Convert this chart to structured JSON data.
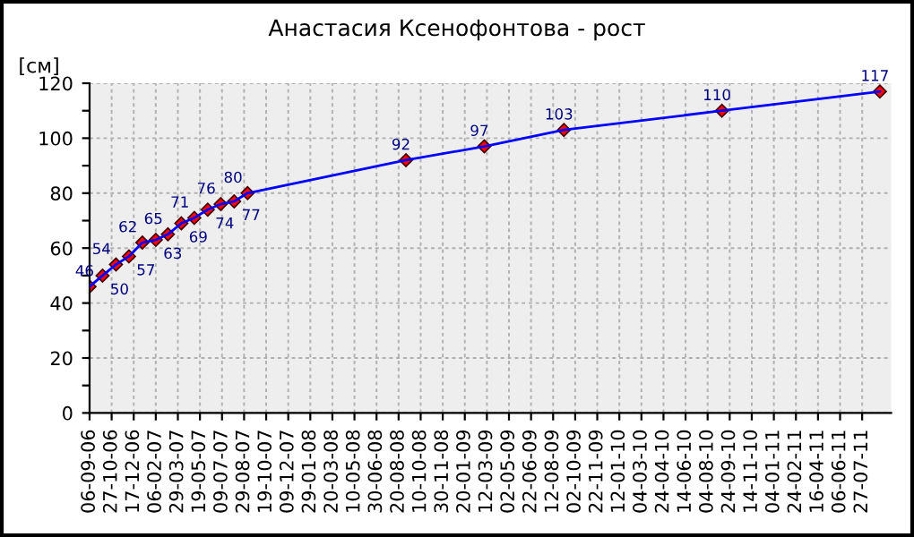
{
  "chart_data": {
    "type": "line",
    "title": "Анастасия Ксенофонтова - рост",
    "ylabel": "[см]",
    "x": [
      "2006-09-06",
      "2006-10-06",
      "2006-11-06",
      "2006-12-06",
      "2007-01-06",
      "2007-02-06",
      "2007-03-06",
      "2007-04-06",
      "2007-05-06",
      "2007-06-06",
      "2007-07-06",
      "2007-08-06",
      "2007-09-06",
      "2008-09-06",
      "2009-03-06",
      "2009-09-06",
      "2010-09-06",
      "2011-09-06"
    ],
    "series": [
      {
        "color": "#0000ff",
        "values": [
          46,
          50,
          54,
          57,
          62,
          63,
          65,
          69,
          71,
          74,
          76,
          77,
          80,
          92,
          97,
          103,
          110,
          117
        ]
      }
    ],
    "marker": "diamond",
    "data_labels": true,
    "grid": true,
    "xlim": [
      "2006-09-06",
      "2011-10-02"
    ],
    "ylim": [
      0,
      120
    ],
    "yticks": [
      0,
      {
        "value": 10,
        "label": null
      },
      20,
      {
        "value": 30,
        "label": null
      },
      40,
      {
        "value": 50,
        "label": null
      },
      60,
      {
        "value": 70,
        "label": null
      },
      80,
      {
        "value": 90,
        "label": null
      },
      100,
      {
        "value": 110,
        "label": null
      },
      120
    ],
    "xticks": [
      {
        "value": "2006-09-06",
        "label": "06-09-06"
      },
      {
        "value": "2006-10-27",
        "label": "27-10-06"
      },
      {
        "value": "2006-12-17",
        "label": "17-12-06"
      },
      {
        "value": "2007-02-06",
        "label": "06-02-07"
      },
      {
        "value": "2007-03-29",
        "label": "29-03-07"
      },
      {
        "value": "2007-05-19",
        "label": "19-05-07"
      },
      {
        "value": "2007-07-09",
        "label": "09-07-07"
      },
      {
        "value": "2007-08-29",
        "label": "29-08-07"
      },
      {
        "value": "2007-10-19",
        "label": "19-10-07"
      },
      {
        "value": "2007-12-09",
        "label": "09-12-07"
      },
      {
        "value": "2008-01-29",
        "label": "29-01-08"
      },
      {
        "value": "2008-03-20",
        "label": "20-03-08"
      },
      {
        "value": "2008-05-10",
        "label": "10-05-08"
      },
      {
        "value": "2008-06-30",
        "label": "30-06-08"
      },
      {
        "value": "2008-08-20",
        "label": "20-08-08"
      },
      {
        "value": "2008-10-10",
        "label": "10-10-08"
      },
      {
        "value": "2008-11-30",
        "label": "30-11-08"
      },
      {
        "value": "2009-01-20",
        "label": "20-01-09"
      },
      {
        "value": "2009-03-12",
        "label": "12-03-09"
      },
      {
        "value": "2009-05-02",
        "label": "02-05-09"
      },
      {
        "value": "2009-06-22",
        "label": "22-06-09"
      },
      {
        "value": "2009-08-12",
        "label": "12-08-09"
      },
      {
        "value": "2009-10-02",
        "label": "02-10-09"
      },
      {
        "value": "2009-11-22",
        "label": "22-11-09"
      },
      {
        "value": "2010-01-12",
        "label": "12-01-10"
      },
      {
        "value": "2010-03-04",
        "label": "04-03-10"
      },
      {
        "value": "2010-04-24",
        "label": "24-04-10"
      },
      {
        "value": "2010-06-14",
        "label": "14-06-10"
      },
      {
        "value": "2010-08-04",
        "label": "04-08-10"
      },
      {
        "value": "2010-09-24",
        "label": "24-09-10"
      },
      {
        "value": "2010-11-14",
        "label": "14-11-10"
      },
      {
        "value": "2011-01-04",
        "label": "04-01-11"
      },
      {
        "value": "2011-02-24",
        "label": "24-02-11"
      },
      {
        "value": "2011-04-16",
        "label": "16-04-11"
      },
      {
        "value": "2011-06-06",
        "label": "06-06-11"
      },
      {
        "value": "2011-07-27",
        "label": "27-07-11"
      }
    ]
  }
}
